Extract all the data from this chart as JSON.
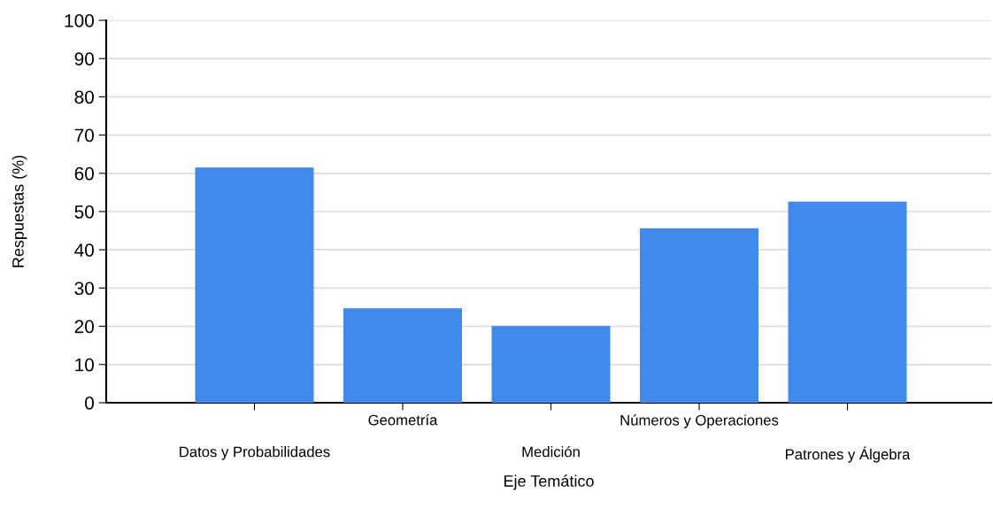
{
  "chart_data": {
    "type": "bar",
    "xlabel": "Eje Temático",
    "ylabel": "Respuestas (%)",
    "categories": [
      "Datos y Probabilidades",
      "Geometría",
      "Medición",
      "Números y Operaciones",
      "Patrones y Álgebra"
    ],
    "values": [
      61.5,
      24.7,
      20.1,
      45.6,
      52.6
    ],
    "color": "#3f8aea",
    "ylim": [
      0,
      100
    ],
    "yticks": [
      0,
      10,
      20,
      30,
      40,
      50,
      60,
      70,
      80,
      90,
      100
    ],
    "grid": "y"
  }
}
